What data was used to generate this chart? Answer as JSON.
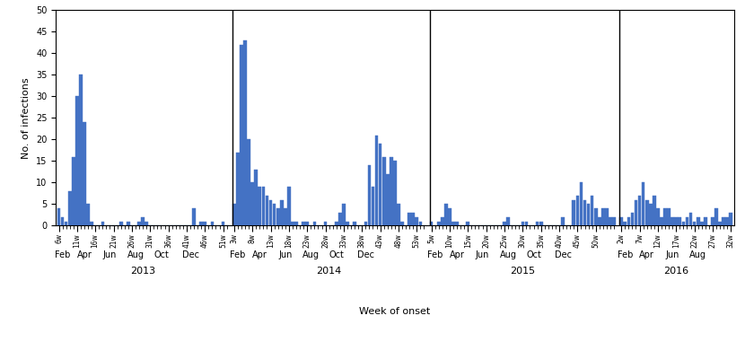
{
  "bar_color": "#4472C4",
  "ylabel": "No. of infections",
  "xlabel": "Week of onset",
  "ylim": [
    0,
    50
  ],
  "yticks": [
    0,
    5,
    10,
    15,
    20,
    25,
    30,
    35,
    40,
    45,
    50
  ],
  "bars_2013": [
    4,
    2,
    1,
    8,
    16,
    30,
    35,
    24,
    5,
    1,
    0,
    0,
    1,
    0,
    0,
    0,
    0,
    1,
    0,
    1,
    0,
    0,
    1,
    2,
    1,
    0,
    0,
    0,
    0,
    0,
    0,
    0,
    0,
    0,
    0,
    0,
    0,
    4,
    0,
    1,
    1,
    0,
    1,
    0,
    0,
    1,
    0
  ],
  "bars_2014": [
    5,
    17,
    42,
    43,
    20,
    10,
    13,
    9,
    9,
    7,
    6,
    5,
    4,
    6,
    4,
    9,
    1,
    1,
    0,
    1,
    1,
    0,
    1,
    0,
    0,
    1,
    0,
    0,
    1,
    3,
    5,
    1,
    0,
    1,
    0,
    0,
    1,
    14,
    9,
    21,
    19,
    16,
    12,
    16,
    15,
    5,
    1,
    0,
    3,
    3,
    2,
    1,
    0
  ],
  "bars_2015": [
    1,
    0,
    1,
    2,
    5,
    4,
    1,
    1,
    0,
    0,
    1,
    0,
    0,
    0,
    0,
    0,
    0,
    0,
    0,
    0,
    1,
    2,
    0,
    0,
    0,
    1,
    1,
    0,
    0,
    1,
    1,
    0,
    0,
    0,
    0,
    0,
    2,
    0,
    0,
    6,
    7,
    10,
    6,
    5,
    7,
    4,
    2,
    4,
    4,
    2,
    2
  ],
  "bars_2016": [
    2,
    1,
    2,
    3,
    6,
    7,
    10,
    6,
    5,
    7,
    4,
    2,
    4,
    4,
    2,
    2,
    2,
    1,
    2,
    3,
    1,
    2,
    1,
    2,
    0,
    2,
    4,
    1,
    2,
    2,
    3
  ],
  "week_labels_2013": [
    "6w",
    "11w",
    "16w",
    "21w",
    "26w",
    "31w",
    "36w",
    "41w",
    "46w",
    "51w"
  ],
  "week_offsets_2013": [
    0,
    5,
    10,
    15,
    20,
    25,
    30,
    35,
    40,
    45
  ],
  "week_labels_2014": [
    "3w",
    "8w",
    "13w",
    "18w",
    "23w",
    "28w",
    "33w",
    "38w",
    "43w",
    "48w",
    "53w"
  ],
  "week_offsets_2014": [
    0,
    5,
    10,
    15,
    20,
    25,
    30,
    35,
    40,
    45,
    50
  ],
  "week_labels_2015": [
    "5w",
    "10w",
    "15w",
    "20w",
    "25w",
    "30w",
    "35w",
    "40w",
    "45w",
    "50w"
  ],
  "week_offsets_2015": [
    0,
    5,
    10,
    15,
    20,
    25,
    30,
    35,
    40,
    45
  ],
  "week_labels_2016": [
    "2w",
    "7w",
    "12w",
    "17w",
    "22w",
    "27w",
    "32w"
  ],
  "week_offsets_2016": [
    0,
    5,
    10,
    15,
    20,
    25,
    30
  ],
  "month_labels_full": [
    "Feb",
    "Apr",
    "Jun",
    "Aug",
    "Oct",
    "Dec"
  ],
  "month_offsets_full": [
    1,
    7,
    14,
    21,
    28,
    36
  ],
  "month_labels_2016": [
    "Feb",
    "Apr",
    "Jun",
    "Aug"
  ],
  "month_offsets_2016": [
    1,
    7,
    14,
    21
  ],
  "years": [
    "2013",
    "2014",
    "2015",
    "2016"
  ]
}
